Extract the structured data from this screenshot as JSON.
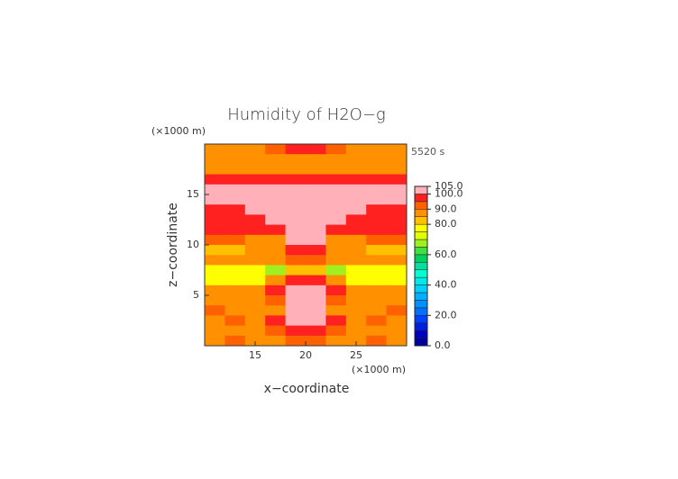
{
  "chart_data": {
    "type": "contour",
    "title": "Humidity of H2O−g",
    "time_label": "5520 s",
    "x_unit": "(×1000 m)",
    "y_unit": "(×1000 m)",
    "xlabel": "x−coordinate",
    "ylabel": "z−coordinate",
    "xlim": [
      10,
      30
    ],
    "ylim": [
      0,
      20
    ],
    "xticks": [
      15,
      20,
      25
    ],
    "yticks": [
      5,
      10,
      15
    ],
    "x": [
      11,
      13,
      15,
      17,
      19,
      21,
      23,
      25,
      27,
      29
    ],
    "z": [
      19.5,
      18.5,
      17.5,
      16.5,
      15.5,
      14.5,
      13.5,
      12.5,
      11.5,
      10.5,
      9.5,
      8.5,
      7.5,
      6.5,
      5.5,
      4.5,
      3.5,
      2.5,
      1.5,
      0.5
    ],
    "values": [
      [
        87,
        87,
        88,
        90,
        96,
        96,
        90,
        88,
        87,
        87
      ],
      [
        85,
        86,
        86,
        87,
        88,
        88,
        87,
        86,
        86,
        85
      ],
      [
        88,
        88,
        88,
        87,
        87,
        87,
        87,
        88,
        88,
        88
      ],
      [
        97,
        97,
        97,
        97,
        97,
        97,
        97,
        97,
        97,
        97
      ],
      [
        102,
        102,
        102,
        102,
        102,
        102,
        102,
        102,
        102,
        102
      ],
      [
        102,
        102,
        102,
        102,
        102,
        102,
        102,
        102,
        102,
        102
      ],
      [
        96,
        96,
        102,
        102,
        102,
        102,
        102,
        102,
        96,
        96
      ],
      [
        97,
        97,
        96,
        102,
        102,
        102,
        102,
        96,
        97,
        97
      ],
      [
        95,
        95,
        97,
        97,
        102,
        102,
        97,
        97,
        95,
        95
      ],
      [
        90,
        90,
        88,
        87,
        102,
        102,
        87,
        88,
        90,
        90
      ],
      [
        82,
        82,
        85,
        88,
        97,
        97,
        88,
        85,
        82,
        82
      ],
      [
        88,
        88,
        86,
        85,
        92,
        92,
        85,
        86,
        88,
        88
      ],
      [
        77,
        77,
        78,
        68,
        84,
        84,
        68,
        78,
        77,
        77
      ],
      [
        77,
        78,
        79,
        85,
        97,
        97,
        85,
        79,
        78,
        77
      ],
      [
        86,
        86,
        88,
        95,
        102,
        102,
        95,
        88,
        86,
        86
      ],
      [
        87,
        88,
        87,
        92,
        102,
        102,
        92,
        87,
        88,
        87
      ],
      [
        92,
        88,
        88,
        87,
        102,
        102,
        87,
        88,
        88,
        92
      ],
      [
        86,
        90,
        87,
        96,
        102,
        102,
        96,
        87,
        90,
        86
      ],
      [
        88,
        87,
        88,
        92,
        97,
        97,
        92,
        88,
        87,
        88
      ],
      [
        88,
        90,
        86,
        88,
        92,
        92,
        88,
        86,
        90,
        88
      ]
    ],
    "levels": [
      0,
      5,
      10,
      15,
      20,
      25,
      30,
      35,
      40,
      45,
      50,
      55,
      60,
      65,
      70,
      75,
      80,
      85,
      90,
      95,
      100,
      105
    ],
    "colors": [
      "#0000a0",
      "#0000c0",
      "#0020e0",
      "#0040ff",
      "#0070ff",
      "#0090ff",
      "#00b0ff",
      "#00d0ff",
      "#00e8e8",
      "#00ffd0",
      "#00e0a0",
      "#00d060",
      "#40e040",
      "#a0f020",
      "#e0ff00",
      "#ffff00",
      "#ffc000",
      "#ff9000",
      "#ff6000",
      "#ff2020",
      "#ffb0b8"
    ],
    "colorbar_ticks": [
      {
        "value": 0,
        "label": "0.0"
      },
      {
        "value": 20,
        "label": "20.0"
      },
      {
        "value": 40,
        "label": "40.0"
      },
      {
        "value": 60,
        "label": "60.0"
      },
      {
        "value": 80,
        "label": "80.0"
      },
      {
        "value": 90,
        "label": "90.0"
      },
      {
        "value": 100,
        "label": "100.0"
      },
      {
        "value": 105,
        "label": "105.0"
      }
    ]
  }
}
